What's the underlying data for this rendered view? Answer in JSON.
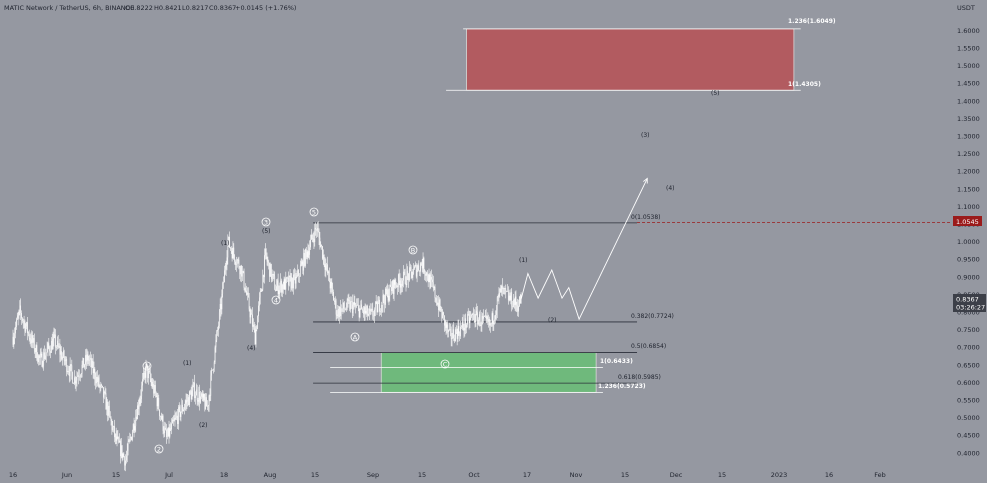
{
  "header": {
    "symbol": "MATIC Network / TetherUS, 6h, BINANCE",
    "open": "O0.8222",
    "high": "H0.8421",
    "low": "L0.8217",
    "close": "C0.8367",
    "change": "+0.0145 (+1.76%)"
  },
  "price_axis": {
    "currency": "USDT",
    "ticks": [
      "1.6000",
      "1.5500",
      "1.5000",
      "1.4500",
      "1.4000",
      "1.3500",
      "1.3000",
      "1.2500",
      "1.2000",
      "1.1500",
      "1.1000",
      "1.0500",
      "1.0000",
      "0.9500",
      "0.9000",
      "0.8500",
      "0.8000",
      "0.7500",
      "0.7000",
      "0.6500",
      "0.6000",
      "0.5500",
      "0.5000",
      "0.4500",
      "0.4000"
    ],
    "marker_value": "1.0545",
    "current_price": "0.8367",
    "countdown": "03:26:27"
  },
  "time_axis": {
    "ticks": [
      "16",
      "Jun",
      "15",
      "Jul",
      "18",
      "Aug",
      "15",
      "Sep",
      "15",
      "Oct",
      "17",
      "Nov",
      "15",
      "Dec",
      "15",
      "2023",
      "16",
      "Feb"
    ]
  },
  "fib_levels": {
    "upper_top": "1.236(1.6049)",
    "upper_bottom": "1(1.4305)",
    "level_0": "0(1.0538)",
    "level_382": "0.382(0.7724)",
    "level_5": "0.5(0.6854)",
    "level_1": "1(0.6433)",
    "level_618": "0.618(0.5985)",
    "level_1236": "1.236(0.5723)"
  },
  "wave_labels": {
    "w_1_may": "1",
    "w_2_jun": "2",
    "p_1_jun": "(1)",
    "p_2_jun": "(2)",
    "p_1_jul": "(1)",
    "w_3_aug": "3",
    "p_5_aug": "(5)",
    "w_4_aug": "4",
    "p_4_aug": "(4)",
    "w_5_aug": "5",
    "w_A_sep": "A",
    "w_B_sep": "B",
    "w_C_sep": "C",
    "p_1_oct": "(1)",
    "p_2_oct": "(2)",
    "p_3_nov": "(3)",
    "p_4_nov": "(4)",
    "p_5_nov": "(5)"
  },
  "colors": {
    "background": "#9598a1",
    "candles": "#ffffff",
    "red_zone": "#b25b60",
    "green_zone": "#6fb97c",
    "marker": "#9b1b1b",
    "price_tag": "#3c3f48"
  },
  "chart_data": {
    "type": "candlestick",
    "symbol": "MATICUSDT",
    "timeframe": "6h",
    "exchange": "BINANCE",
    "ylim": [
      0.38,
      1.66
    ],
    "price_path": [
      {
        "x": "2022-05-16",
        "y": 0.73
      },
      {
        "x": "2022-05-18",
        "y": 0.8
      },
      {
        "x": "2022-05-24",
        "y": 0.66
      },
      {
        "x": "2022-05-28",
        "y": 0.72
      },
      {
        "x": "2022-06-03",
        "y": 0.61
      },
      {
        "x": "2022-06-07",
        "y": 0.67
      },
      {
        "x": "2022-06-12",
        "y": 0.55
      },
      {
        "x": "2022-06-15",
        "y": 0.44
      },
      {
        "x": "2022-06-18",
        "y": 0.38
      },
      {
        "x": "2022-06-22",
        "y": 0.55
      },
      {
        "x": "2022-06-24",
        "y": 0.64
      },
      {
        "x": "2022-06-27",
        "y": 0.56
      },
      {
        "x": "2022-06-30",
        "y": 0.44
      },
      {
        "x": "2022-07-03",
        "y": 0.5
      },
      {
        "x": "2022-07-08",
        "y": 0.58
      },
      {
        "x": "2022-07-12",
        "y": 0.53
      },
      {
        "x": "2022-07-16",
        "y": 0.82
      },
      {
        "x": "2022-07-18",
        "y": 1.0
      },
      {
        "x": "2022-07-22",
        "y": 0.92
      },
      {
        "x": "2022-07-26",
        "y": 0.73
      },
      {
        "x": "2022-07-29",
        "y": 0.96
      },
      {
        "x": "2022-08-01",
        "y": 0.87
      },
      {
        "x": "2022-08-07",
        "y": 0.89
      },
      {
        "x": "2022-08-13",
        "y": 1.04
      },
      {
        "x": "2022-08-16",
        "y": 0.92
      },
      {
        "x": "2022-08-19",
        "y": 0.8
      },
      {
        "x": "2022-08-23",
        "y": 0.82
      },
      {
        "x": "2022-08-29",
        "y": 0.79
      },
      {
        "x": "2022-09-05",
        "y": 0.88
      },
      {
        "x": "2022-09-10",
        "y": 0.91
      },
      {
        "x": "2022-09-13",
        "y": 0.94
      },
      {
        "x": "2022-09-16",
        "y": 0.87
      },
      {
        "x": "2022-09-21",
        "y": 0.73
      },
      {
        "x": "2022-09-24",
        "y": 0.75
      },
      {
        "x": "2022-09-28",
        "y": 0.79
      },
      {
        "x": "2022-10-03",
        "y": 0.76
      },
      {
        "x": "2022-10-06",
        "y": 0.86
      },
      {
        "x": "2022-10-11",
        "y": 0.82
      },
      {
        "x": "2022-10-12",
        "y": 0.8367
      }
    ],
    "projection": [
      {
        "x": "2022-10-14",
        "y": 0.91
      },
      {
        "x": "2022-10-17",
        "y": 0.84
      },
      {
        "x": "2022-10-21",
        "y": 0.92
      },
      {
        "x": "2022-10-24",
        "y": 0.84
      },
      {
        "x": "2022-10-26",
        "y": 0.87
      },
      {
        "x": "2022-10-29",
        "y": 0.78
      },
      {
        "x": "2022-11-18",
        "y": 1.18
      }
    ],
    "zones": [
      {
        "from": 1.4305,
        "to": 1.6049,
        "color": "red",
        "x_start": "2022-09-26",
        "x_end": "2022-12-31"
      },
      {
        "from": 0.5723,
        "to": 0.6854,
        "color": "green",
        "x_start": "2022-09-01",
        "x_end": "2022-11-03"
      }
    ]
  }
}
